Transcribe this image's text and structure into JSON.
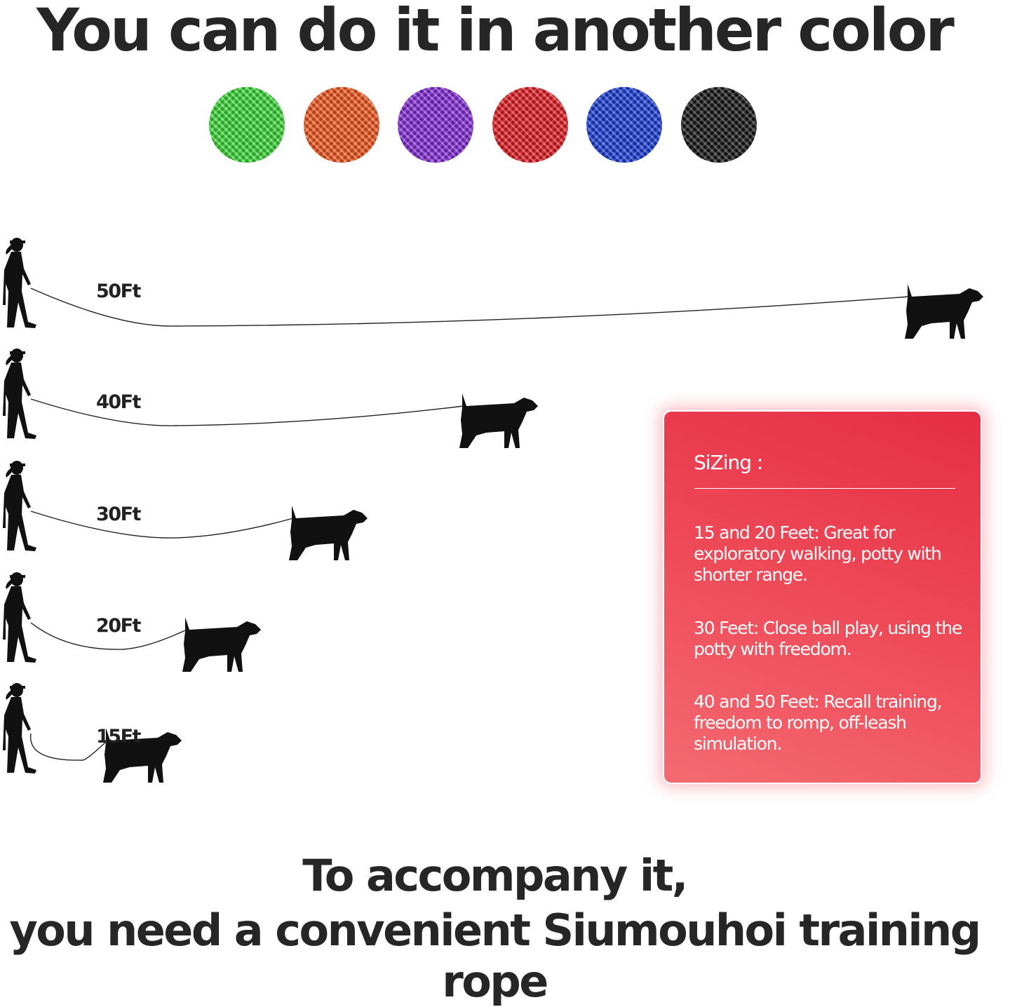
{
  "title": "You can do it in another color",
  "swatches": [
    {
      "name": "green",
      "color": "#3ee33a"
    },
    {
      "name": "orange",
      "color": "#ff5a1f"
    },
    {
      "name": "purple",
      "color": "#8a2ee0"
    },
    {
      "name": "red",
      "color": "#ee1c24"
    },
    {
      "name": "blue",
      "color": "#1a3fe0"
    },
    {
      "name": "black",
      "color": "#151515"
    }
  ],
  "lengths": [
    {
      "label": "50Ft",
      "value": 50
    },
    {
      "label": "40Ft",
      "value": 40
    },
    {
      "label": "30Ft",
      "value": 30
    },
    {
      "label": "20Ft",
      "value": 20
    },
    {
      "label": "15Ft",
      "value": 15
    }
  ],
  "sizing": {
    "heading": "SiZing :",
    "items": [
      "15 and 20 Feet: Great for exploratory walking, potty with shorter range.",
      "30 Feet: Close ball play, using the potty with freedom.",
      "40 and 50 Feet: Recall training, freedom to romp, off-leash simulation."
    ]
  },
  "footer": {
    "line1": "To accompany it,",
    "line2": "you need a convenient Siumouhoi training rope"
  }
}
